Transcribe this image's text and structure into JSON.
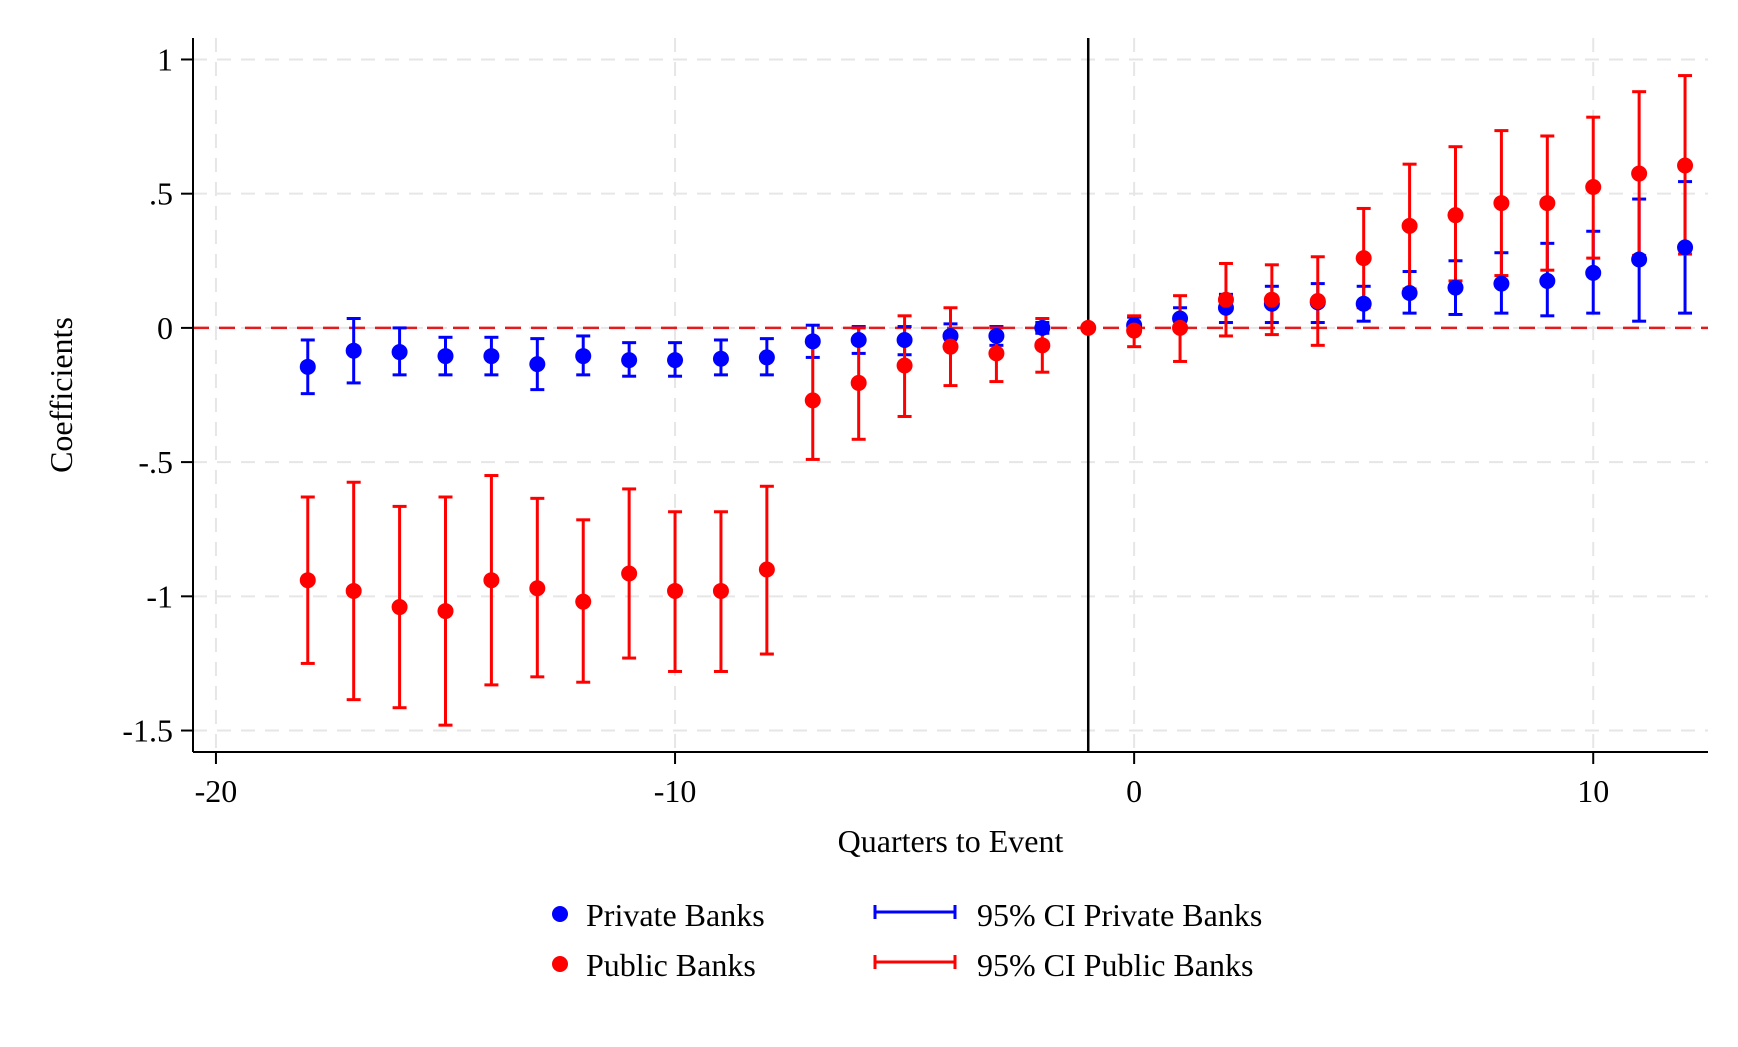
{
  "chart_data": {
    "type": "scatter",
    "title": "",
    "xlabel": "Quarters to Event",
    "ylabel": "Coefficients",
    "xlim": [
      -20.5,
      12.5
    ],
    "ylim": [
      -1.58,
      1.08
    ],
    "x_ticks": [
      -20,
      -10,
      0,
      10
    ],
    "x_tick_labels": [
      "-20",
      "-10",
      "0",
      "10"
    ],
    "y_ticks": [
      1,
      0.5,
      0,
      -0.5,
      -1,
      -1.5
    ],
    "y_tick_labels": [
      "1",
      ".5",
      "0",
      "-.5",
      "-1",
      "-1.5"
    ],
    "grid": true,
    "event_line_x": -1,
    "zero_reference_line_y": 0,
    "legend_position": "bottom",
    "legend": [
      {
        "label": "Private Banks",
        "kind": "marker",
        "color": "#0000ff"
      },
      {
        "label": "Public Banks",
        "kind": "marker",
        "color": "#ff0000"
      },
      {
        "label": "95% CI Private Banks",
        "kind": "capped-line",
        "color": "#0000ff"
      },
      {
        "label": "95% CI Public Banks",
        "kind": "capped-line",
        "color": "#ff0000"
      }
    ],
    "series": [
      {
        "name": "Private Banks",
        "color": "#0000ff",
        "points": [
          {
            "x": -18,
            "y": -0.145,
            "lo": -0.245,
            "hi": -0.045
          },
          {
            "x": -17,
            "y": -0.085,
            "lo": -0.205,
            "hi": 0.035
          },
          {
            "x": -16,
            "y": -0.09,
            "lo": -0.175,
            "hi": 0.0
          },
          {
            "x": -15,
            "y": -0.105,
            "lo": -0.175,
            "hi": -0.035
          },
          {
            "x": -14,
            "y": -0.105,
            "lo": -0.175,
            "hi": -0.035
          },
          {
            "x": -13,
            "y": -0.135,
            "lo": -0.23,
            "hi": -0.04
          },
          {
            "x": -12,
            "y": -0.105,
            "lo": -0.175,
            "hi": -0.03
          },
          {
            "x": -11,
            "y": -0.12,
            "lo": -0.18,
            "hi": -0.055
          },
          {
            "x": -10,
            "y": -0.12,
            "lo": -0.18,
            "hi": -0.055
          },
          {
            "x": -9,
            "y": -0.115,
            "lo": -0.175,
            "hi": -0.045
          },
          {
            "x": -8,
            "y": -0.11,
            "lo": -0.175,
            "hi": -0.04
          },
          {
            "x": -7,
            "y": -0.05,
            "lo": -0.11,
            "hi": 0.01
          },
          {
            "x": -6,
            "y": -0.045,
            "lo": -0.095,
            "hi": 0.005
          },
          {
            "x": -5,
            "y": -0.045,
            "lo": -0.1,
            "hi": 0.005
          },
          {
            "x": -4,
            "y": -0.03,
            "lo": -0.07,
            "hi": 0.015
          },
          {
            "x": -3,
            "y": -0.03,
            "lo": -0.065,
            "hi": 0.005
          },
          {
            "x": -2,
            "y": 0.0,
            "lo": -0.02,
            "hi": 0.02
          },
          {
            "x": 0,
            "y": 0.01,
            "lo": -0.015,
            "hi": 0.04
          },
          {
            "x": 1,
            "y": 0.035,
            "lo": 0.005,
            "hi": 0.075
          },
          {
            "x": 2,
            "y": 0.075,
            "lo": 0.02,
            "hi": 0.125
          },
          {
            "x": 3,
            "y": 0.09,
            "lo": 0.02,
            "hi": 0.155
          },
          {
            "x": 4,
            "y": 0.095,
            "lo": 0.02,
            "hi": 0.165
          },
          {
            "x": 5,
            "y": 0.09,
            "lo": 0.025,
            "hi": 0.155
          },
          {
            "x": 6,
            "y": 0.13,
            "lo": 0.055,
            "hi": 0.21
          },
          {
            "x": 7,
            "y": 0.15,
            "lo": 0.05,
            "hi": 0.25
          },
          {
            "x": 8,
            "y": 0.165,
            "lo": 0.055,
            "hi": 0.28
          },
          {
            "x": 9,
            "y": 0.175,
            "lo": 0.045,
            "hi": 0.315
          },
          {
            "x": 10,
            "y": 0.205,
            "lo": 0.055,
            "hi": 0.36
          },
          {
            "x": 11,
            "y": 0.255,
            "lo": 0.025,
            "hi": 0.48
          },
          {
            "x": 12,
            "y": 0.3,
            "lo": 0.055,
            "hi": 0.545
          }
        ]
      },
      {
        "name": "Public Banks",
        "color": "#ff0000",
        "points": [
          {
            "x": -18,
            "y": -0.94,
            "lo": -1.25,
            "hi": -0.63
          },
          {
            "x": -17,
            "y": -0.98,
            "lo": -1.385,
            "hi": -0.575
          },
          {
            "x": -16,
            "y": -1.04,
            "lo": -1.415,
            "hi": -0.665
          },
          {
            "x": -15,
            "y": -1.055,
            "lo": -1.48,
            "hi": -0.63
          },
          {
            "x": -14,
            "y": -0.94,
            "lo": -1.33,
            "hi": -0.55
          },
          {
            "x": -13,
            "y": -0.97,
            "lo": -1.3,
            "hi": -0.635
          },
          {
            "x": -12,
            "y": -1.02,
            "lo": -1.32,
            "hi": -0.715
          },
          {
            "x": -11,
            "y": -0.915,
            "lo": -1.23,
            "hi": -0.6
          },
          {
            "x": -10,
            "y": -0.98,
            "lo": -1.28,
            "hi": -0.685
          },
          {
            "x": -9,
            "y": -0.98,
            "lo": -1.28,
            "hi": -0.685
          },
          {
            "x": -8,
            "y": -0.9,
            "lo": -1.215,
            "hi": -0.59
          },
          {
            "x": -7,
            "y": -0.27,
            "lo": -0.49,
            "hi": -0.055
          },
          {
            "x": -6,
            "y": -0.205,
            "lo": -0.415,
            "hi": 0.0
          },
          {
            "x": -5,
            "y": -0.14,
            "lo": -0.33,
            "hi": 0.045
          },
          {
            "x": -4,
            "y": -0.07,
            "lo": -0.215,
            "hi": 0.075
          },
          {
            "x": -3,
            "y": -0.095,
            "lo": -0.2,
            "hi": 0.0
          },
          {
            "x": -2,
            "y": -0.065,
            "lo": -0.165,
            "hi": 0.035
          },
          {
            "x": -1,
            "y": 0.0,
            "lo": 0.0,
            "hi": 0.0
          },
          {
            "x": 0,
            "y": -0.01,
            "lo": -0.07,
            "hi": 0.045
          },
          {
            "x": 1,
            "y": 0.0,
            "lo": -0.125,
            "hi": 0.12
          },
          {
            "x": 2,
            "y": 0.105,
            "lo": -0.03,
            "hi": 0.24
          },
          {
            "x": 3,
            "y": 0.105,
            "lo": -0.025,
            "hi": 0.235
          },
          {
            "x": 4,
            "y": 0.1,
            "lo": -0.065,
            "hi": 0.265
          },
          {
            "x": 5,
            "y": 0.26,
            "lo": 0.075,
            "hi": 0.445
          },
          {
            "x": 6,
            "y": 0.38,
            "lo": 0.145,
            "hi": 0.61
          },
          {
            "x": 7,
            "y": 0.42,
            "lo": 0.175,
            "hi": 0.675
          },
          {
            "x": 8,
            "y": 0.465,
            "lo": 0.195,
            "hi": 0.735
          },
          {
            "x": 9,
            "y": 0.465,
            "lo": 0.215,
            "hi": 0.715
          },
          {
            "x": 10,
            "y": 0.525,
            "lo": 0.26,
            "hi": 0.785
          },
          {
            "x": 11,
            "y": 0.575,
            "lo": 0.27,
            "hi": 0.88
          },
          {
            "x": 12,
            "y": 0.605,
            "lo": 0.275,
            "hi": 0.94
          }
        ]
      }
    ]
  }
}
